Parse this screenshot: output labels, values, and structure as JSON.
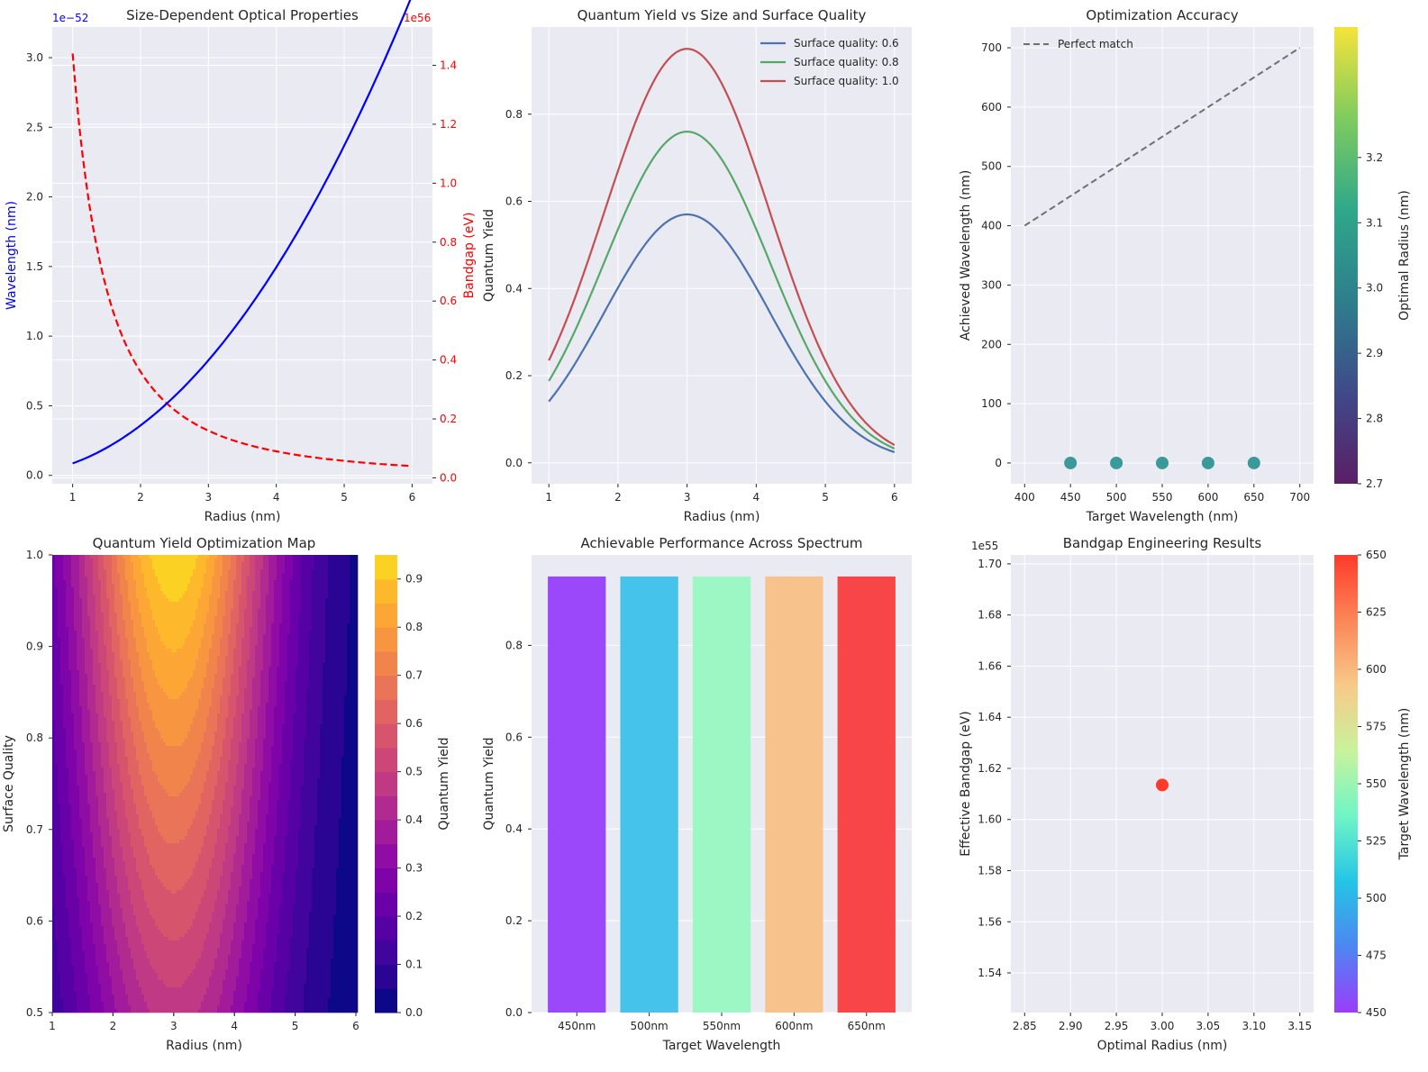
{
  "colors": {
    "plot_bg": "#EAEAF2",
    "grid": "#FFFFFF",
    "blue": "#0000FF",
    "red": "#FF0000",
    "sq_06": "#4C72B0",
    "sq_08": "#55A868",
    "sq_10": "#C44E52",
    "marker": "#3A9A9A",
    "ref_line": "#707070"
  },
  "chart_data": [
    {
      "id": "p1",
      "type": "line",
      "title": "Size-Dependent Optical Properties",
      "xlabel": "Radius (nm)",
      "ylabel": "Wavelength (nm)",
      "ylabel_right": "Bandgap (eV)",
      "offset_left": "1e−52",
      "offset_right": "1e56",
      "xlim": [
        0.7,
        6.3
      ],
      "ylim": [
        -0.06,
        3.22
      ],
      "ylim_right": [
        -0.02,
        1.53
      ],
      "x_ticks": [
        1,
        2,
        3,
        4,
        5,
        6
      ],
      "y_ticks": [
        0.0,
        0.5,
        1.0,
        1.5,
        2.0,
        2.5,
        3.0
      ],
      "y_ticks_right": [
        0.0,
        0.2,
        0.4,
        0.6,
        0.8,
        1.0,
        1.2,
        1.4
      ],
      "series": [
        {
          "axis": "left",
          "style": "solid",
          "color": "#0000FF",
          "x": [
            1,
            1.5,
            2,
            2.5,
            3,
            3.5,
            4,
            4.5,
            5,
            5.5,
            6
          ],
          "y": [
            0.086,
            0.19,
            0.34,
            0.53,
            0.78,
            1.04,
            1.37,
            1.74,
            2.14,
            2.59,
            3.09
          ]
        },
        {
          "axis": "right",
          "style": "dashed",
          "color": "#FF0000",
          "x": [
            1,
            1.5,
            2,
            2.5,
            3,
            3.5,
            4,
            4.5,
            5,
            5.5,
            6
          ],
          "y": [
            1.44,
            0.64,
            0.36,
            0.23,
            0.16,
            0.118,
            0.09,
            0.071,
            0.058,
            0.048,
            0.04
          ]
        }
      ]
    },
    {
      "id": "p2",
      "type": "line",
      "title": "Quantum Yield vs Size and Surface Quality",
      "xlabel": "Radius (nm)",
      "ylabel": "Quantum Yield",
      "xlim": [
        0.75,
        6.25
      ],
      "ylim": [
        -0.048,
        1.0
      ],
      "x_ticks": [
        1,
        2,
        3,
        4,
        5,
        6
      ],
      "y_ticks": [
        0.0,
        0.2,
        0.4,
        0.6,
        0.8
      ],
      "legend_position": "top-right",
      "curve": {
        "center": 3,
        "width": 1.3,
        "x_min": 1,
        "x_max": 6
      },
      "series": [
        {
          "name": "Surface quality: 0.6",
          "peak": 0.57,
          "color": "#4C72B0"
        },
        {
          "name": "Surface quality: 0.8",
          "peak": 0.76,
          "color": "#55A868"
        },
        {
          "name": "Surface quality: 1.0",
          "peak": 0.95,
          "color": "#C44E52"
        }
      ]
    },
    {
      "id": "p3",
      "type": "scatter",
      "title": "Optimization Accuracy",
      "xlabel": "Target Wavelength (nm)",
      "ylabel": "Achieved Wavelength (nm)",
      "colorbar_label": "Optimal Radius (nm)",
      "xlim": [
        385,
        715
      ],
      "ylim": [
        -35,
        735
      ],
      "x_ticks": [
        400,
        450,
        500,
        550,
        600,
        650,
        700
      ],
      "y_ticks": [
        0,
        100,
        200,
        300,
        400,
        500,
        600,
        700
      ],
      "colorbar_ticks": [
        2.7,
        2.8,
        2.9,
        3.0,
        3.1,
        3.2
      ],
      "colorbar_range": [
        2.7,
        3.4
      ],
      "legend_position": "top-left",
      "reference_line": {
        "name": "Perfect match",
        "x": [
          400,
          700
        ],
        "y": [
          400,
          700
        ]
      },
      "points": {
        "x": [
          450,
          500,
          550,
          600,
          650
        ],
        "y": [
          0,
          0,
          0,
          0,
          0
        ]
      }
    },
    {
      "id": "p4",
      "type": "heatmap",
      "title": "Quantum Yield Optimization Map",
      "xlabel": "Radius (nm)",
      "ylabel": "Surface Quality",
      "colorbar_label": "Quantum Yield",
      "xlim": [
        1,
        6
      ],
      "ylim": [
        0.5,
        1.0
      ],
      "x_ticks": [
        1,
        2,
        3,
        4,
        5,
        6
      ],
      "y_ticks": [
        0.5,
        0.6,
        0.7,
        0.8,
        0.9,
        1.0
      ],
      "colorbar_ticks": [
        0.0,
        0.1,
        0.2,
        0.3,
        0.4,
        0.5,
        0.6,
        0.7,
        0.8,
        0.9
      ],
      "levels": 19,
      "level_max": 0.95,
      "peak_radius": 3,
      "colormap": "plasma"
    },
    {
      "id": "p5",
      "type": "bar",
      "title": "Achievable Performance Across Spectrum",
      "xlabel": "Target Wavelength",
      "ylabel": "Quantum Yield",
      "ylim": [
        0,
        0.997
      ],
      "y_ticks": [
        0.0,
        0.2,
        0.4,
        0.6,
        0.8
      ],
      "categories": [
        "450nm",
        "500nm",
        "550nm",
        "600nm",
        "650nm"
      ],
      "values": [
        0.95,
        0.95,
        0.95,
        0.95,
        0.95
      ],
      "bar_colors": [
        "#9B47FA",
        "#46C3EB",
        "#9DF7C5",
        "#F8C28C",
        "#F84548"
      ]
    },
    {
      "id": "p6",
      "type": "scatter",
      "title": "Bandgap Engineering Results",
      "xlabel": "Optimal Radius (nm)",
      "ylabel": "Effective Bandgap (eV)",
      "colorbar_label": "Target Wavelength (nm)",
      "offset_left": "1e55",
      "xlim": [
        2.835,
        3.165
      ],
      "ylim": [
        1.5245,
        1.7035
      ],
      "x_ticks": [
        2.85,
        2.9,
        2.95,
        3.0,
        3.05,
        3.1,
        3.15
      ],
      "y_ticks": [
        1.54,
        1.56,
        1.58,
        1.6,
        1.62,
        1.64,
        1.66,
        1.68,
        1.7
      ],
      "colorbar_ticks": [
        450,
        475,
        500,
        525,
        550,
        575,
        600,
        625,
        650
      ],
      "colorbar_range": [
        450,
        650
      ],
      "points": {
        "x": [
          3.0
        ],
        "y": [
          1.6135
        ],
        "color": "#FF3A2A"
      }
    }
  ]
}
